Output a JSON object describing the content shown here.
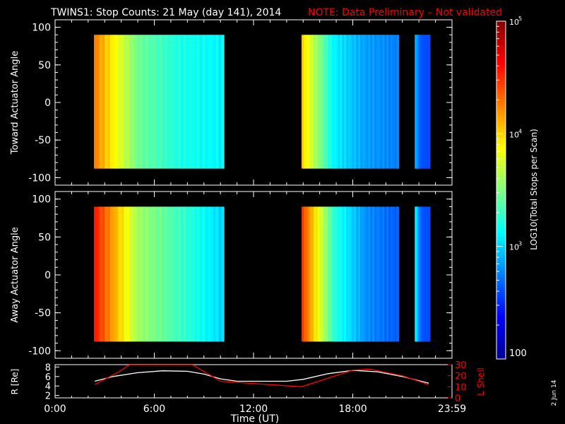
{
  "header": {
    "title": "TWINS1: Stop Counts: 21 May (day 141), 2014",
    "note": "NOTE: Data Preliminary – Not validated"
  },
  "side_stamp": "2 Jun 14",
  "colors": {
    "background": "#000000",
    "axes": "#ffffff",
    "note": "#ff0000",
    "r_line": "#ffffff",
    "l_shell_line": "#ff0000"
  },
  "chart_data": [
    {
      "type": "heatmap",
      "ylabel": "Toward Actuator Angle",
      "ylim": [
        -110,
        110
      ],
      "y_ticks": [
        "100",
        "50",
        "0",
        "-50",
        "-100"
      ],
      "xlim": [
        0,
        24
      ],
      "angle_range": [
        -88,
        90
      ],
      "segments": [
        {
          "start": 2.35,
          "end": 10.05,
          "levels": [
            4.25,
            3.45,
            3.2,
            3.1
          ]
        },
        {
          "start": 14.9,
          "end": 20.65,
          "levels": [
            4.0,
            3.1,
            2.85,
            2.75
          ]
        },
        {
          "start": 21.75,
          "end": 22.65,
          "levels": [
            2.95,
            2.65,
            2.6,
            2.6
          ]
        }
      ]
    },
    {
      "type": "heatmap",
      "ylabel": "Away Actuator Angle",
      "ylim": [
        -110,
        110
      ],
      "y_ticks": [
        "100",
        "50",
        "0",
        "-50",
        "-100"
      ],
      "xlim": [
        0,
        24
      ],
      "angle_range": [
        -88,
        90
      ],
      "segments": [
        {
          "start": 2.35,
          "end": 10.05,
          "levels": [
            4.55,
            3.6,
            3.3,
            3.0
          ]
        },
        {
          "start": 14.9,
          "end": 20.65,
          "levels": [
            4.45,
            3.25,
            2.8,
            2.65
          ]
        },
        {
          "start": 21.75,
          "end": 22.65,
          "levels": [
            3.2,
            2.7,
            2.6,
            2.6
          ]
        }
      ]
    },
    {
      "type": "line",
      "xlabel": "Time (UT)",
      "x_ticks": [
        "0:00",
        "6:00",
        "12:00",
        "18:00",
        "23:59"
      ],
      "x_tick_hours": [
        0,
        6,
        12,
        18,
        24
      ],
      "xlim": [
        0,
        24
      ],
      "ylabel_left": "R [Re]",
      "ylim_left": [
        1.5,
        8.5
      ],
      "y_ticks_left": [
        "2",
        "4",
        "6",
        "8"
      ],
      "ylabel_right": "L Shell",
      "ylim_right": [
        0,
        30
      ],
      "y_ticks_right": [
        "0",
        "10",
        "20",
        "30"
      ],
      "series": [
        {
          "name": "R",
          "axis": "left",
          "x": [
            2.4,
            3.5,
            5.0,
            6.5,
            8.0,
            9.0,
            10.0,
            11.0,
            12.5,
            14.0,
            15.0,
            16.5,
            18.0,
            19.5,
            21.0,
            22.6
          ],
          "y": [
            5.0,
            6.0,
            6.8,
            7.2,
            7.1,
            6.5,
            5.5,
            5.0,
            5.0,
            5.0,
            5.4,
            6.6,
            7.3,
            7.0,
            6.0,
            4.6
          ]
        },
        {
          "name": "L Shell",
          "axis": "right",
          "x": [
            2.4,
            3.8,
            4.5,
            8.3,
            10.0,
            14.9,
            18.0,
            19.0,
            21.0,
            22.6
          ],
          "y": [
            12,
            23,
            30,
            30,
            15,
            10,
            25,
            26,
            20,
            12
          ]
        }
      ]
    }
  ],
  "colorbar": {
    "label": "LOG10(Total Stops per Scan)",
    "min_label": "100",
    "tick_labels": [
      "10",
      "10",
      "10"
    ],
    "tick_exponents": [
      "3",
      "4",
      "5"
    ],
    "zlim": [
      2.0,
      5.0
    ]
  }
}
